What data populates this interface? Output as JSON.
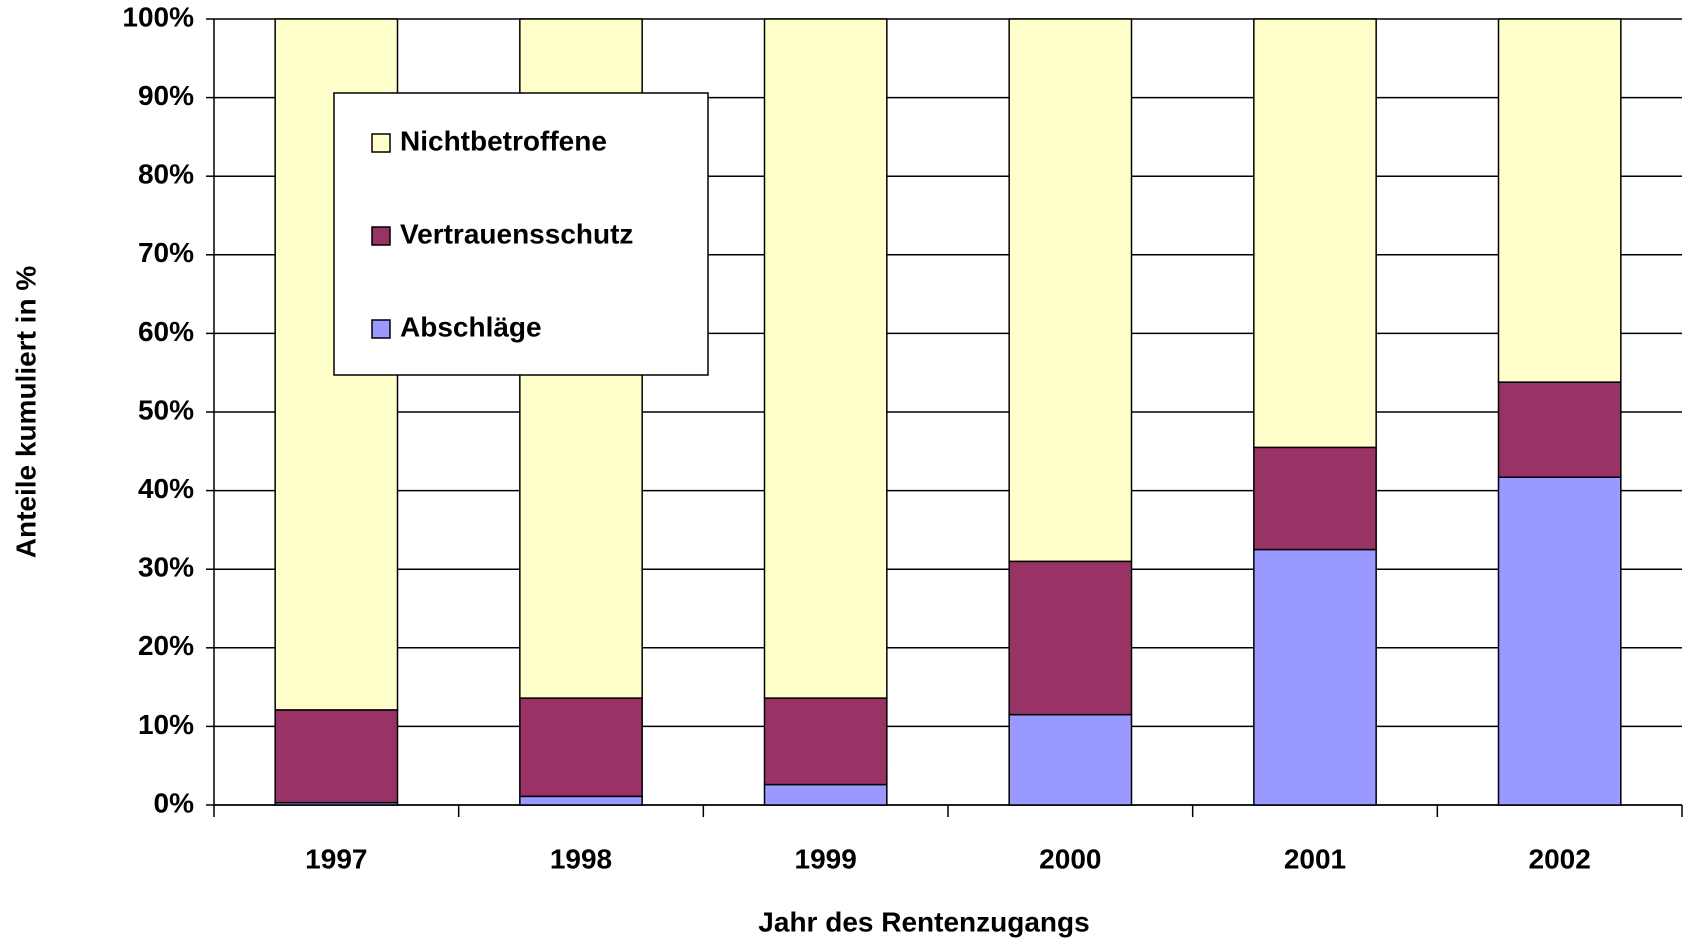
{
  "chart_data": {
    "type": "stacked_bar",
    "x_label": "Jahr des Rentenzugangs",
    "y_label": "Anteile kumuliert in %",
    "categories": [
      "1997",
      "1998",
      "1999",
      "2000",
      "2001",
      "2002"
    ],
    "series": [
      {
        "name": "Abschläge",
        "color": "#9999ff",
        "values": [
          0.3,
          1.1,
          2.6,
          11.5,
          32.5,
          41.7
        ]
      },
      {
        "name": "Vertrauensschutz",
        "color": "#993366",
        "values": [
          11.8,
          12.5,
          11.0,
          19.5,
          13.0,
          12.1
        ]
      },
      {
        "name": "Nichtbetroffene",
        "color": "#ffffcc",
        "values": [
          87.9,
          86.4,
          86.4,
          69.0,
          54.5,
          46.2
        ]
      }
    ],
    "ylim": [
      0,
      100
    ],
    "yticks": [
      {
        "value": 0,
        "label": "0%"
      },
      {
        "value": 10,
        "label": "10%"
      },
      {
        "value": 20,
        "label": "20%"
      },
      {
        "value": 30,
        "label": "30%"
      },
      {
        "value": 40,
        "label": "40%"
      },
      {
        "value": 50,
        "label": "50%"
      },
      {
        "value": 60,
        "label": "60%"
      },
      {
        "value": 70,
        "label": "70%"
      },
      {
        "value": 80,
        "label": "80%"
      },
      {
        "value": 90,
        "label": "90%"
      },
      {
        "value": 100,
        "label": "100%"
      }
    ],
    "grid": true
  }
}
